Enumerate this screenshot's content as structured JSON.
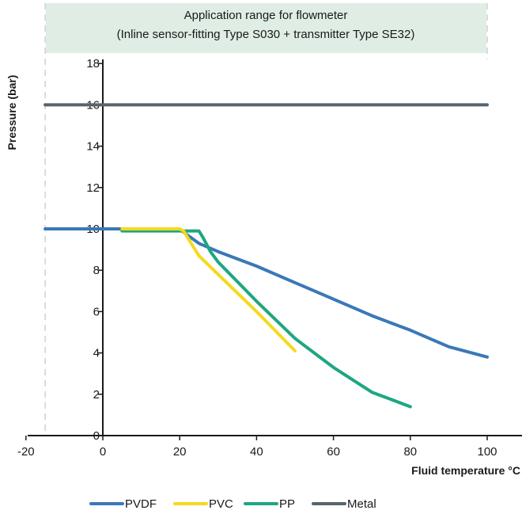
{
  "chart_data": {
    "type": "line",
    "title": "Application range for flowmeter",
    "subtitle": "(Inline sensor-fitting Type S030 + transmitter Type SE32)",
    "xlabel": "Fluid temperature °C",
    "ylabel": "Pressure (bar)",
    "xlim": [
      -20,
      106
    ],
    "ylim": [
      0,
      18
    ],
    "x_ticks": [
      -20,
      0,
      20,
      40,
      60,
      80,
      100
    ],
    "y_ticks": [
      0,
      2,
      4,
      6,
      8,
      10,
      12,
      14,
      16,
      18
    ],
    "grid": false,
    "reference_line_x": -15,
    "legend_position": "bottom",
    "series": [
      {
        "name": "PVDF",
        "color": "#3a78b8",
        "x": [
          -15,
          5,
          20,
          22,
          25,
          30,
          40,
          50,
          60,
          70,
          80,
          90,
          100
        ],
        "y": [
          10,
          10,
          10,
          9.7,
          9.3,
          8.9,
          8.2,
          7.4,
          6.6,
          5.8,
          5.1,
          4.3,
          3.8
        ]
      },
      {
        "name": "PVC",
        "color": "#f7d81e",
        "x": [
          5,
          20,
          21,
          23,
          25,
          30,
          40,
          50
        ],
        "y": [
          10,
          10,
          9.9,
          9.3,
          8.7,
          7.8,
          6.0,
          4.1
        ]
      },
      {
        "name": "PP",
        "color": "#1ea682",
        "x": [
          5,
          20,
          24,
          25,
          26,
          28,
          30,
          40,
          50,
          60,
          70,
          80
        ],
        "y": [
          9.9,
          9.9,
          9.9,
          9.9,
          9.6,
          8.9,
          8.4,
          6.5,
          4.7,
          3.3,
          2.1,
          1.4
        ]
      },
      {
        "name": "Metal",
        "color": "#58646c",
        "x": [
          -15,
          100
        ],
        "y": [
          16,
          16
        ]
      }
    ]
  }
}
